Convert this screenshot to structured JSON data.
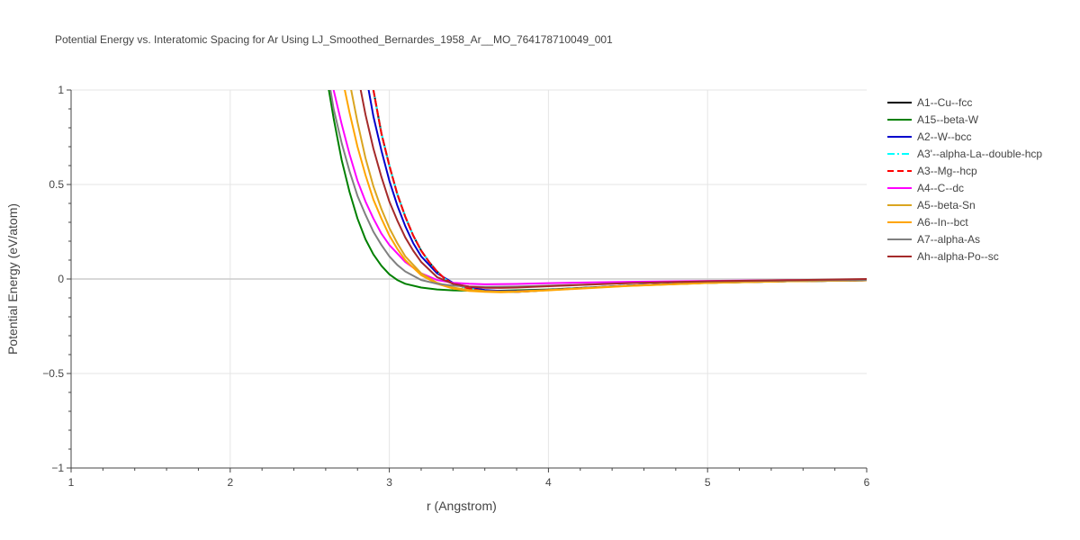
{
  "chart_data": {
    "type": "line",
    "title": "Potential Energy vs. Interatomic Spacing for Ar Using LJ_Smoothed_Bernardes_1958_Ar__MO_764178710049_001",
    "xlabel": "r (Angstrom)",
    "ylabel": "Potential Energy (eV/atom)",
    "xlim": [
      1,
      6
    ],
    "ylim": [
      -1,
      1
    ],
    "xticks": [
      1,
      2,
      3,
      4,
      5,
      6
    ],
    "xtick_labels": [
      "1",
      "2",
      "3",
      "4",
      "5",
      "6"
    ],
    "yticks": [
      -1,
      -0.5,
      0,
      0.5,
      1
    ],
    "ytick_labels": [
      "−1",
      "−0.5",
      "0",
      "0.5",
      "1"
    ],
    "grid": true,
    "legend_position": "right",
    "series": [
      {
        "name": "A1--Cu--fcc",
        "color": "#000000",
        "dash": "solid",
        "x": [
          2.9,
          2.95,
          3.0,
          3.05,
          3.1,
          3.15,
          3.2,
          3.25,
          3.3,
          3.35,
          3.4,
          3.5,
          3.6,
          3.7,
          3.8,
          3.9,
          4.0,
          4.5,
          5.0,
          5.5,
          6.0
        ],
        "y": [
          1.0,
          0.77,
          0.6,
          0.45,
          0.33,
          0.23,
          0.15,
          0.09,
          0.04,
          0.0,
          -0.025,
          -0.05,
          -0.065,
          -0.068,
          -0.068,
          -0.064,
          -0.058,
          -0.035,
          -0.02,
          -0.012,
          -0.007
        ]
      },
      {
        "name": "A15--beta-W",
        "color": "#008000",
        "dash": "solid",
        "x": [
          2.62,
          2.65,
          2.7,
          2.75,
          2.8,
          2.85,
          2.9,
          2.95,
          3.0,
          3.05,
          3.1,
          3.2,
          3.3,
          3.4,
          3.5,
          3.6,
          3.7,
          4.0,
          4.5,
          5.0,
          5.5,
          6.0
        ],
        "y": [
          1.0,
          0.85,
          0.63,
          0.46,
          0.32,
          0.21,
          0.13,
          0.07,
          0.025,
          -0.005,
          -0.025,
          -0.045,
          -0.055,
          -0.06,
          -0.062,
          -0.063,
          -0.062,
          -0.055,
          -0.035,
          -0.02,
          -0.012,
          -0.007
        ]
      },
      {
        "name": "A2--W--bcc",
        "color": "#0000CD",
        "dash": "solid",
        "x": [
          2.87,
          2.9,
          2.95,
          3.0,
          3.05,
          3.1,
          3.15,
          3.2,
          3.3,
          3.4,
          3.5,
          3.6,
          3.7,
          3.8,
          4.0,
          4.5,
          5.0,
          5.5,
          6.0
        ],
        "y": [
          1.0,
          0.86,
          0.68,
          0.52,
          0.39,
          0.28,
          0.19,
          0.12,
          0.03,
          -0.02,
          -0.045,
          -0.058,
          -0.063,
          -0.063,
          -0.057,
          -0.035,
          -0.02,
          -0.012,
          -0.007
        ]
      },
      {
        "name": "A3'--alpha-La--double-hcp",
        "color": "#00FFFF",
        "dash": "dashdot",
        "x": [
          2.9,
          2.95,
          3.0,
          3.05,
          3.1,
          3.15,
          3.2,
          3.25,
          3.3,
          3.35,
          3.4,
          3.5,
          3.6,
          3.7,
          3.8,
          3.9,
          4.0,
          4.5,
          5.0,
          5.5,
          6.0
        ],
        "y": [
          1.0,
          0.77,
          0.6,
          0.45,
          0.33,
          0.23,
          0.15,
          0.09,
          0.04,
          0.0,
          -0.025,
          -0.05,
          -0.065,
          -0.068,
          -0.068,
          -0.064,
          -0.058,
          -0.035,
          -0.02,
          -0.012,
          -0.007
        ]
      },
      {
        "name": "A3--Mg--hcp",
        "color": "#FF0000",
        "dash": "dash",
        "x": [
          2.9,
          2.95,
          3.0,
          3.05,
          3.1,
          3.15,
          3.2,
          3.25,
          3.3,
          3.35,
          3.4,
          3.5,
          3.6,
          3.7,
          3.8,
          3.9,
          4.0,
          4.5,
          5.0,
          5.5,
          6.0
        ],
        "y": [
          1.0,
          0.77,
          0.6,
          0.45,
          0.33,
          0.23,
          0.15,
          0.09,
          0.04,
          0.0,
          -0.025,
          -0.05,
          -0.065,
          -0.068,
          -0.068,
          -0.064,
          -0.058,
          -0.035,
          -0.02,
          -0.012,
          -0.007
        ]
      },
      {
        "name": "A4--C--dc",
        "color": "#FF00FF",
        "dash": "solid",
        "x": [
          2.65,
          2.7,
          2.75,
          2.8,
          2.85,
          2.9,
          2.95,
          3.0,
          3.1,
          3.2,
          3.3,
          3.4,
          3.5,
          3.6,
          3.8,
          4.0,
          4.5,
          5.0,
          5.5,
          6.0
        ],
        "y": [
          1.0,
          0.82,
          0.66,
          0.52,
          0.41,
          0.32,
          0.24,
          0.18,
          0.09,
          0.03,
          -0.005,
          -0.02,
          -0.025,
          -0.028,
          -0.026,
          -0.022,
          -0.015,
          -0.01,
          -0.006,
          -0.004
        ]
      },
      {
        "name": "A5--beta-Sn",
        "color": "#DAA520",
        "dash": "solid",
        "x": [
          2.76,
          2.8,
          2.85,
          2.9,
          2.95,
          3.0,
          3.05,
          3.1,
          3.2,
          3.3,
          3.4,
          3.5,
          3.6,
          3.7,
          3.8,
          4.0,
          4.5,
          5.0,
          5.5,
          6.0
        ],
        "y": [
          1.0,
          0.83,
          0.64,
          0.49,
          0.37,
          0.27,
          0.19,
          0.12,
          0.03,
          -0.02,
          -0.045,
          -0.058,
          -0.064,
          -0.066,
          -0.065,
          -0.058,
          -0.036,
          -0.021,
          -0.012,
          -0.007
        ]
      },
      {
        "name": "A6--In--bct",
        "color": "#FFA500",
        "dash": "solid",
        "x": [
          2.72,
          2.75,
          2.8,
          2.85,
          2.9,
          2.95,
          3.0,
          3.05,
          3.1,
          3.2,
          3.3,
          3.4,
          3.5,
          3.6,
          3.7,
          3.8,
          4.0,
          4.5,
          5.0,
          5.5,
          6.0
        ],
        "y": [
          1.0,
          0.88,
          0.7,
          0.55,
          0.42,
          0.32,
          0.23,
          0.16,
          0.1,
          0.02,
          -0.025,
          -0.05,
          -0.063,
          -0.068,
          -0.07,
          -0.068,
          -0.06,
          -0.037,
          -0.021,
          -0.012,
          -0.007
        ]
      },
      {
        "name": "A7--alpha-As",
        "color": "#808080",
        "dash": "solid",
        "x": [
          2.63,
          2.65,
          2.7,
          2.75,
          2.8,
          2.85,
          2.9,
          2.95,
          3.0,
          3.05,
          3.1,
          3.2,
          3.3,
          3.4,
          3.5,
          3.6,
          3.8,
          4.0,
          4.5,
          5.0,
          5.5,
          6.0
        ],
        "y": [
          1.0,
          0.9,
          0.72,
          0.57,
          0.44,
          0.34,
          0.25,
          0.18,
          0.12,
          0.075,
          0.04,
          -0.005,
          -0.025,
          -0.035,
          -0.04,
          -0.042,
          -0.04,
          -0.035,
          -0.022,
          -0.013,
          -0.008,
          -0.005
        ]
      },
      {
        "name": "Ah--alpha-Po--sc",
        "color": "#A52A2A",
        "dash": "solid",
        "x": [
          2.82,
          2.85,
          2.9,
          2.95,
          3.0,
          3.05,
          3.1,
          3.15,
          3.2,
          3.3,
          3.4,
          3.5,
          3.6,
          3.7,
          3.8,
          4.0,
          4.5,
          5.0,
          5.5,
          6.0
        ],
        "y": [
          1.0,
          0.87,
          0.69,
          0.54,
          0.41,
          0.31,
          0.22,
          0.15,
          0.09,
          0.01,
          -0.025,
          -0.04,
          -0.046,
          -0.047,
          -0.045,
          -0.038,
          -0.022,
          -0.012,
          -0.006,
          0.0
        ]
      }
    ]
  }
}
